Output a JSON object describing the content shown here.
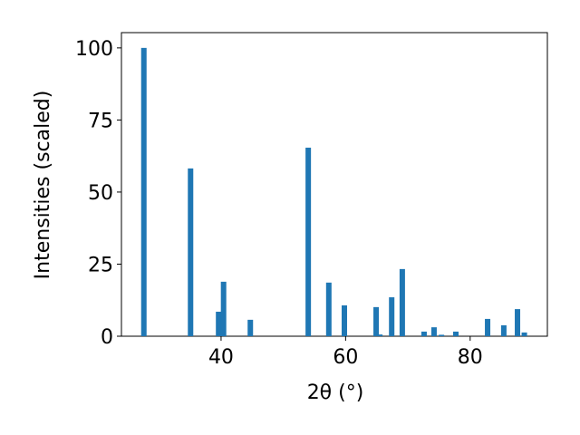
{
  "chart_data": {
    "type": "bar",
    "x": [
      27.6,
      35.1,
      39.6,
      40.4,
      44.7,
      54.0,
      57.3,
      59.8,
      64.9,
      65.5,
      67.4,
      69.1,
      72.6,
      74.2,
      75.4,
      77.7,
      82.8,
      85.4,
      87.6,
      88.7
    ],
    "values": [
      100,
      58.2,
      8.5,
      18.9,
      5.7,
      65.4,
      18.6,
      10.7,
      10.1,
      0.6,
      13.5,
      23.3,
      1.6,
      3.1,
      0.5,
      1.6,
      6.0,
      3.8,
      9.4,
      1.3
    ],
    "color": "#1f77b4",
    "xlabel": "2θ (°)",
    "ylabel": "Intensities (scaled)",
    "xlim": [
      24,
      92.4
    ],
    "ylim": [
      0,
      105.3
    ],
    "xticks": [
      40,
      60,
      80
    ],
    "yticks": [
      0,
      25,
      50,
      75,
      100
    ],
    "grid": false
  }
}
